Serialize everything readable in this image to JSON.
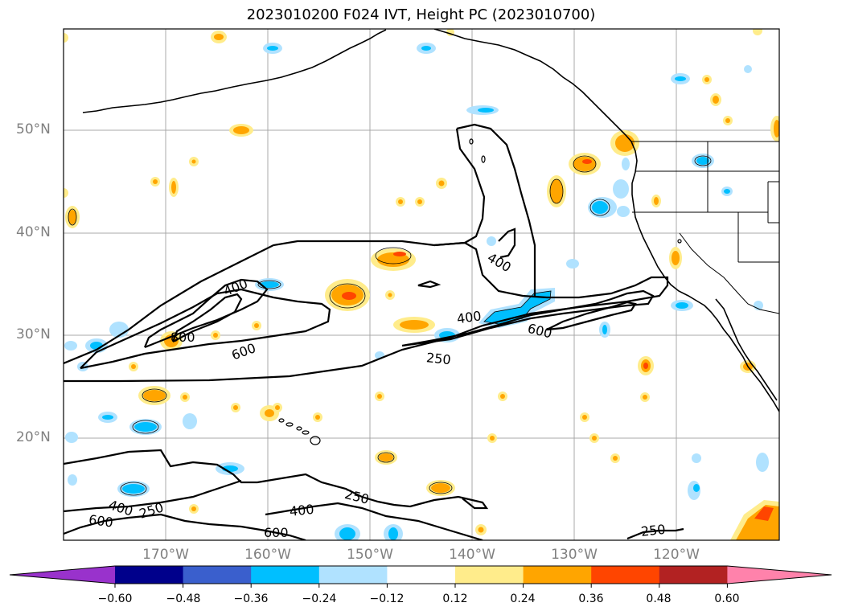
{
  "title": "2023010200 F024 IVT, Height PC (2023010700)",
  "latitude_labels": [
    "50°N",
    "40°N",
    "30°N",
    "20°N"
  ],
  "longitude_labels": [
    "170°W",
    "160°W",
    "150°W",
    "140°W",
    "130°W",
    "120°W"
  ],
  "contour_labels": [
    "400",
    "800",
    "600",
    "250",
    "400",
    "600",
    "400",
    "250",
    "400",
    "600",
    "250",
    "400",
    "600",
    "250"
  ],
  "colorbar": {
    "colors": [
      "#9932cc",
      "#00008b",
      "#3a5fcd",
      "#00bfff",
      "#b0e2ff",
      "#ffffff",
      "#ffec8b",
      "#ffa500",
      "#ff4500",
      "#b22222",
      "#ff82ab"
    ],
    "tick_labels": [
      "−0.60",
      "−0.48",
      "−0.36",
      "−0.24",
      "−0.12",
      "0.12",
      "0.24",
      "0.36",
      "0.48",
      "0.60"
    ]
  }
}
